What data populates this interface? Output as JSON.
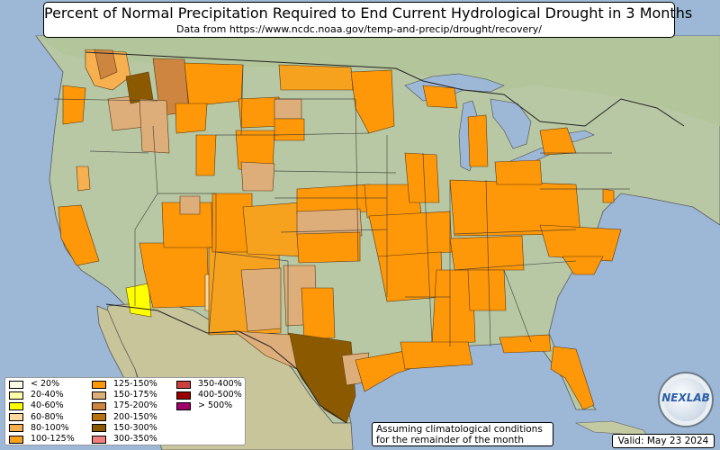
{
  "title": "Percent of Normal Precipitation Required to End Current Hydrological Drought in 3 Months",
  "subtitle": "Data from https://www.ncdc.noaa.gov/temp-and-precip/drought/recovery/",
  "note_line1": "Assuming climatological conditions",
  "note_line2": "for the remainder of the month",
  "valid": "Valid: May 23 2024",
  "logo_text": "NEXLAB",
  "logo_icon": "globe-icon",
  "legend": [
    {
      "label": "< 20%",
      "color": "#fbfbe6"
    },
    {
      "label": "20-40%",
      "color": "#ffffaa"
    },
    {
      "label": "40-60%",
      "color": "#ffff00"
    },
    {
      "label": "60-80%",
      "color": "#ffd9a0"
    },
    {
      "label": "80-100%",
      "color": "#f7b04f"
    },
    {
      "label": "100-125%",
      "color": "#f7a21f"
    },
    {
      "label": "125-150%",
      "color": "#ff9808"
    },
    {
      "label": "150-175%",
      "color": "#ddad7a"
    },
    {
      "label": "175-200%",
      "color": "#cd853f"
    },
    {
      "label": "200-150%",
      "color": "#b8730e"
    },
    {
      "label": "150-300%",
      "color": "#8b5a00"
    },
    {
      "label": "300-350%",
      "color": "#f08080"
    },
    {
      "label": "350-400%",
      "color": "#cd3f3f"
    },
    {
      "label": "400-500%",
      "color": "#990000"
    },
    {
      "label": "> 500%",
      "color": "#a00069"
    }
  ]
}
